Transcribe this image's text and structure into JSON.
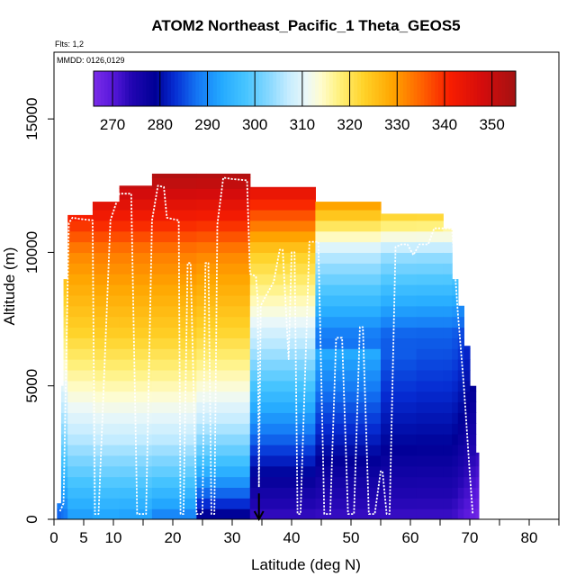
{
  "chart_data": {
    "type": "heatmap",
    "title": "ATOM2 Northeast_Pacific_1 Theta_GEOS5",
    "annotations": [
      "Flts: 1,2",
      "MMDD: 0126,0129"
    ],
    "xlabel": "Latitude (deg N)",
    "ylabel": "Altitude (m)",
    "xlim": [
      0,
      85
    ],
    "ylim": [
      0,
      17500
    ],
    "x_ticks": [
      0,
      5,
      10,
      20,
      30,
      40,
      50,
      60,
      70,
      80
    ],
    "x_minor_ticks": [
      15,
      25,
      35,
      45,
      55,
      65,
      75,
      85
    ],
    "y_ticks": [
      0,
      5000,
      10000,
      15000
    ],
    "colorbar": {
      "range": [
        266,
        355
      ],
      "ticks": [
        270,
        280,
        290,
        300,
        310,
        320,
        330,
        340,
        350
      ],
      "placement": "top-inside"
    },
    "arrow_marker": {
      "x": 34.5,
      "y_from": 700,
      "y_to": 0
    },
    "columns": [
      {
        "x0": 0.5,
        "x1": 1.2,
        "top": 600
      },
      {
        "x0": 1.2,
        "x1": 1.6,
        "top": 5000
      },
      {
        "x0": 1.6,
        "x1": 2.3,
        "top": 9000
      },
      {
        "x0": 2.3,
        "x1": 6.5,
        "top": 11400
      },
      {
        "x0": 6.5,
        "x1": 11,
        "top": 11900
      },
      {
        "x0": 11,
        "x1": 16.5,
        "top": 12500
      },
      {
        "x0": 16.5,
        "x1": 24,
        "top": 12950
      },
      {
        "x0": 24,
        "x1": 33,
        "top": 12950
      },
      {
        "x0": 33,
        "x1": 44,
        "top": 12450
      },
      {
        "x0": 44,
        "x1": 55,
        "top": 11900
      },
      {
        "x0": 55,
        "x1": 61,
        "top": 11450
      },
      {
        "x0": 61,
        "x1": 65.5,
        "top": 11450
      },
      {
        "x0": 65.5,
        "x1": 67,
        "top": 10900
      },
      {
        "x0": 67,
        "x1": 68,
        "top": 9000
      },
      {
        "x0": 68,
        "x1": 69,
        "top": 8000
      },
      {
        "x0": 69,
        "x1": 70,
        "top": 6500
      },
      {
        "x0": 70,
        "x1": 71,
        "top": 5000
      },
      {
        "x0": 71,
        "x1": 71.5,
        "top": 2500
      }
    ],
    "flight_track": {
      "x": [
        1,
        1.6,
        2.5,
        3.1,
        4.5,
        6.5,
        6.9,
        7.5,
        9.5,
        11,
        13,
        14,
        15.5,
        16.5,
        17.5,
        18.5,
        19,
        20,
        21,
        21.3,
        21.8,
        22.5,
        23,
        24,
        25,
        25.5,
        26,
        26.5,
        27,
        27.5,
        28.5,
        30,
        32.5,
        33,
        34,
        34.3,
        34.5,
        34.8,
        35.5,
        37,
        38,
        38.5,
        39.5,
        40,
        40.5,
        41,
        41.5,
        43,
        44.5,
        45.5,
        46.5,
        47.5,
        48.5,
        49.5,
        50.5,
        51.5,
        52,
        53,
        54,
        55,
        55.3,
        56,
        56.5,
        57.5,
        58.5,
        59.5,
        60.5,
        61.5,
        62,
        63,
        64,
        65,
        66,
        67,
        68,
        69,
        70,
        70.5
      ],
      "y": [
        300,
        600,
        11100,
        11300,
        11250,
        11200,
        200,
        200,
        11200,
        12200,
        12200,
        200,
        200,
        11200,
        12500,
        12450,
        11300,
        11250,
        11200,
        200,
        200,
        9600,
        9600,
        200,
        200,
        9600,
        9600,
        200,
        200,
        11050,
        12800,
        12750,
        12700,
        9200,
        9100,
        8200,
        1200,
        8000,
        8300,
        8900,
        10100,
        10100,
        6000,
        10000,
        10000,
        200,
        200,
        10400,
        10400,
        200,
        200,
        6800,
        6800,
        200,
        200,
        7200,
        7200,
        200,
        200,
        1800,
        1800,
        200,
        200,
        10200,
        10300,
        10300,
        9900,
        10300,
        10300,
        10300,
        10900,
        10900,
        10900,
        10900,
        7700,
        5000,
        1700,
        200
      ]
    }
  }
}
